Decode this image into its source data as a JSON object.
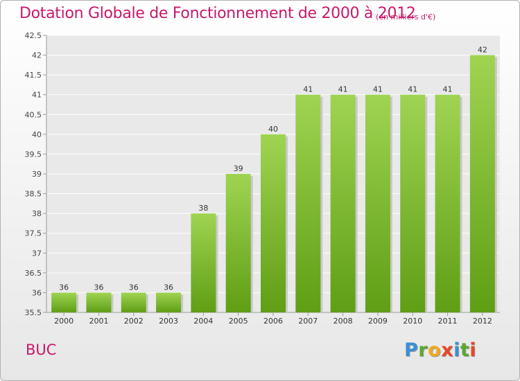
{
  "header": {
    "title": "Dotation Globale de Fonctionnement de 2000 à 2012",
    "unit": "(en milliers d'€)"
  },
  "footer": {
    "commune": "BUC",
    "brand": "Proxiti"
  },
  "colors": {
    "title": "#c8186a",
    "bar_top": "#9fd452",
    "bar_bottom": "#5f9e15"
  },
  "chart_data": {
    "type": "bar",
    "title": "Dotation Globale de Fonctionnement de 2000 à 2012",
    "subtitle": "(en milliers d'€)",
    "xlabel": "",
    "ylabel": "",
    "categories": [
      "2000",
      "2001",
      "2002",
      "2003",
      "2004",
      "2005",
      "2006",
      "2007",
      "2008",
      "2009",
      "2010",
      "2011",
      "2012"
    ],
    "values": [
      36,
      36,
      36,
      36,
      38,
      39,
      40,
      41,
      41,
      41,
      41,
      41,
      42
    ],
    "data_labels": [
      "36",
      "36",
      "36",
      "36",
      "38",
      "39",
      "40",
      "41",
      "41",
      "41",
      "41",
      "41",
      "42"
    ],
    "ylim": [
      35.5,
      42.5
    ],
    "yticks": [
      "35.5",
      "36",
      "36.5",
      "37",
      "37.5",
      "38",
      "38.5",
      "39",
      "39.5",
      "40",
      "40.5",
      "41",
      "41.5",
      "42",
      "42.5"
    ],
    "grid": true,
    "legend": "none"
  }
}
